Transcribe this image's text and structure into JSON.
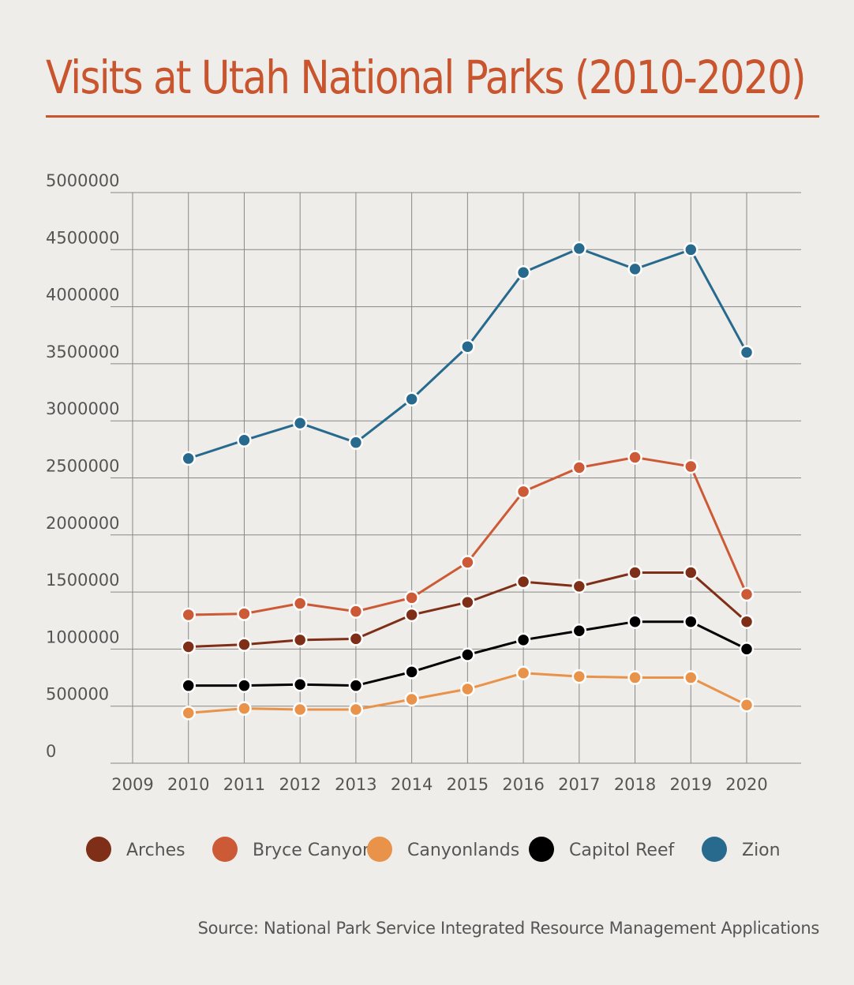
{
  "chart_data": {
    "type": "line",
    "title": "Visits at Utah National Parks (2010-2020)",
    "source": "Source: National Park Service Integrated Resource Management Applications",
    "x_ticks": [
      2009,
      2010,
      2011,
      2012,
      2013,
      2014,
      2015,
      2016,
      2017,
      2018,
      2019,
      2020
    ],
    "y_ticks": [
      0,
      500000,
      1000000,
      1500000,
      2000000,
      2500000,
      3000000,
      3500000,
      4000000,
      4500000,
      5000000
    ],
    "xlim": [
      2009,
      2020
    ],
    "ylim": [
      0,
      5000000
    ],
    "grid": true,
    "legend_placement": "bottom",
    "x": [
      2010,
      2011,
      2012,
      2013,
      2014,
      2015,
      2016,
      2017,
      2018,
      2019,
      2020
    ],
    "series": [
      {
        "name": "Arches",
        "color": "#7f2f17",
        "values": [
          1020000,
          1040000,
          1080000,
          1090000,
          1300000,
          1410000,
          1590000,
          1550000,
          1670000,
          1670000,
          1240000
        ]
      },
      {
        "name": "Bryce Canyon",
        "color": "#cd5a36",
        "values": [
          1300000,
          1310000,
          1400000,
          1330000,
          1450000,
          1760000,
          2380000,
          2590000,
          2680000,
          2600000,
          1480000
        ]
      },
      {
        "name": "Canyonlands",
        "color": "#e8924a",
        "values": [
          440000,
          480000,
          470000,
          470000,
          560000,
          650000,
          790000,
          760000,
          750000,
          750000,
          510000
        ]
      },
      {
        "name": "Capitol Reef",
        "color": "#000000",
        "values": [
          680000,
          680000,
          690000,
          680000,
          800000,
          950000,
          1080000,
          1160000,
          1240000,
          1240000,
          1000000
        ]
      },
      {
        "name": "Zion",
        "color": "#286a8e",
        "values": [
          2670000,
          2830000,
          2980000,
          2810000,
          3190000,
          3650000,
          4300000,
          4510000,
          4330000,
          4500000,
          3600000
        ]
      }
    ]
  }
}
